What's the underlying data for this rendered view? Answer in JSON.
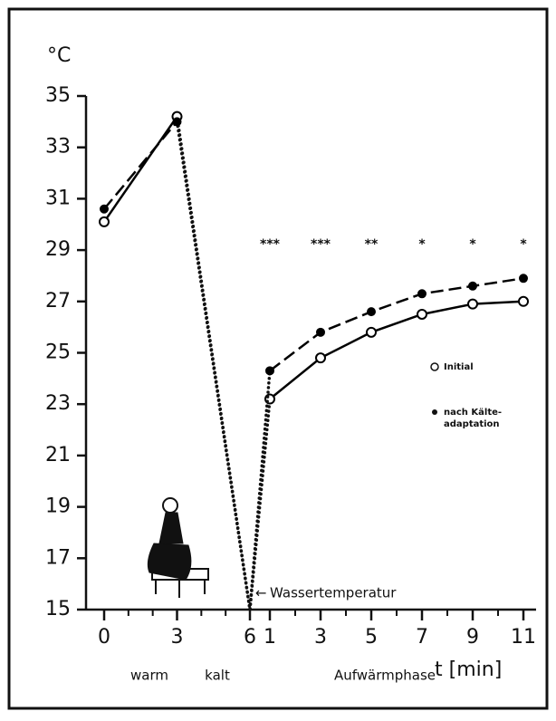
{
  "chart_data": {
    "type": "line",
    "y_label": "°C",
    "x_label": "t [min]",
    "ylim": [
      15,
      35
    ],
    "yticks": [
      15,
      17,
      19,
      21,
      23,
      25,
      27,
      29,
      31,
      33,
      35
    ],
    "panels": [
      {
        "x": [
          0,
          3
        ],
        "xlim": [
          0,
          6
        ],
        "xticks": [
          0,
          3,
          6
        ],
        "labels": [
          "warm",
          "kalt"
        ]
      },
      {
        "x": [
          1,
          3,
          5,
          7,
          9,
          11
        ],
        "xlim": [
          1,
          11
        ],
        "xticks": [
          1,
          3,
          5,
          7,
          9,
          11
        ],
        "labels": [
          "Aufwärmphase"
        ],
        "significance": [
          "***",
          "***",
          "**",
          "*",
          "*",
          "*"
        ]
      }
    ],
    "series": [
      {
        "name": [
          "Initial"
        ],
        "marker": "open",
        "dashed": false,
        "color": "#000000",
        "values": [
          [
            30.1,
            34.2
          ],
          [
            23.2,
            24.8,
            25.8,
            26.5,
            26.9,
            27.0
          ]
        ]
      },
      {
        "name": [
          "nach Kälte-",
          "adaptation"
        ],
        "marker": "filled",
        "dashed": true,
        "color": "#000000",
        "values": [
          [
            30.6,
            34.0
          ],
          [
            24.3,
            25.8,
            26.6,
            27.3,
            27.6,
            27.9
          ]
        ]
      }
    ],
    "water": {
      "label": "Wassertemperatur",
      "x": 6,
      "value": 15
    }
  }
}
